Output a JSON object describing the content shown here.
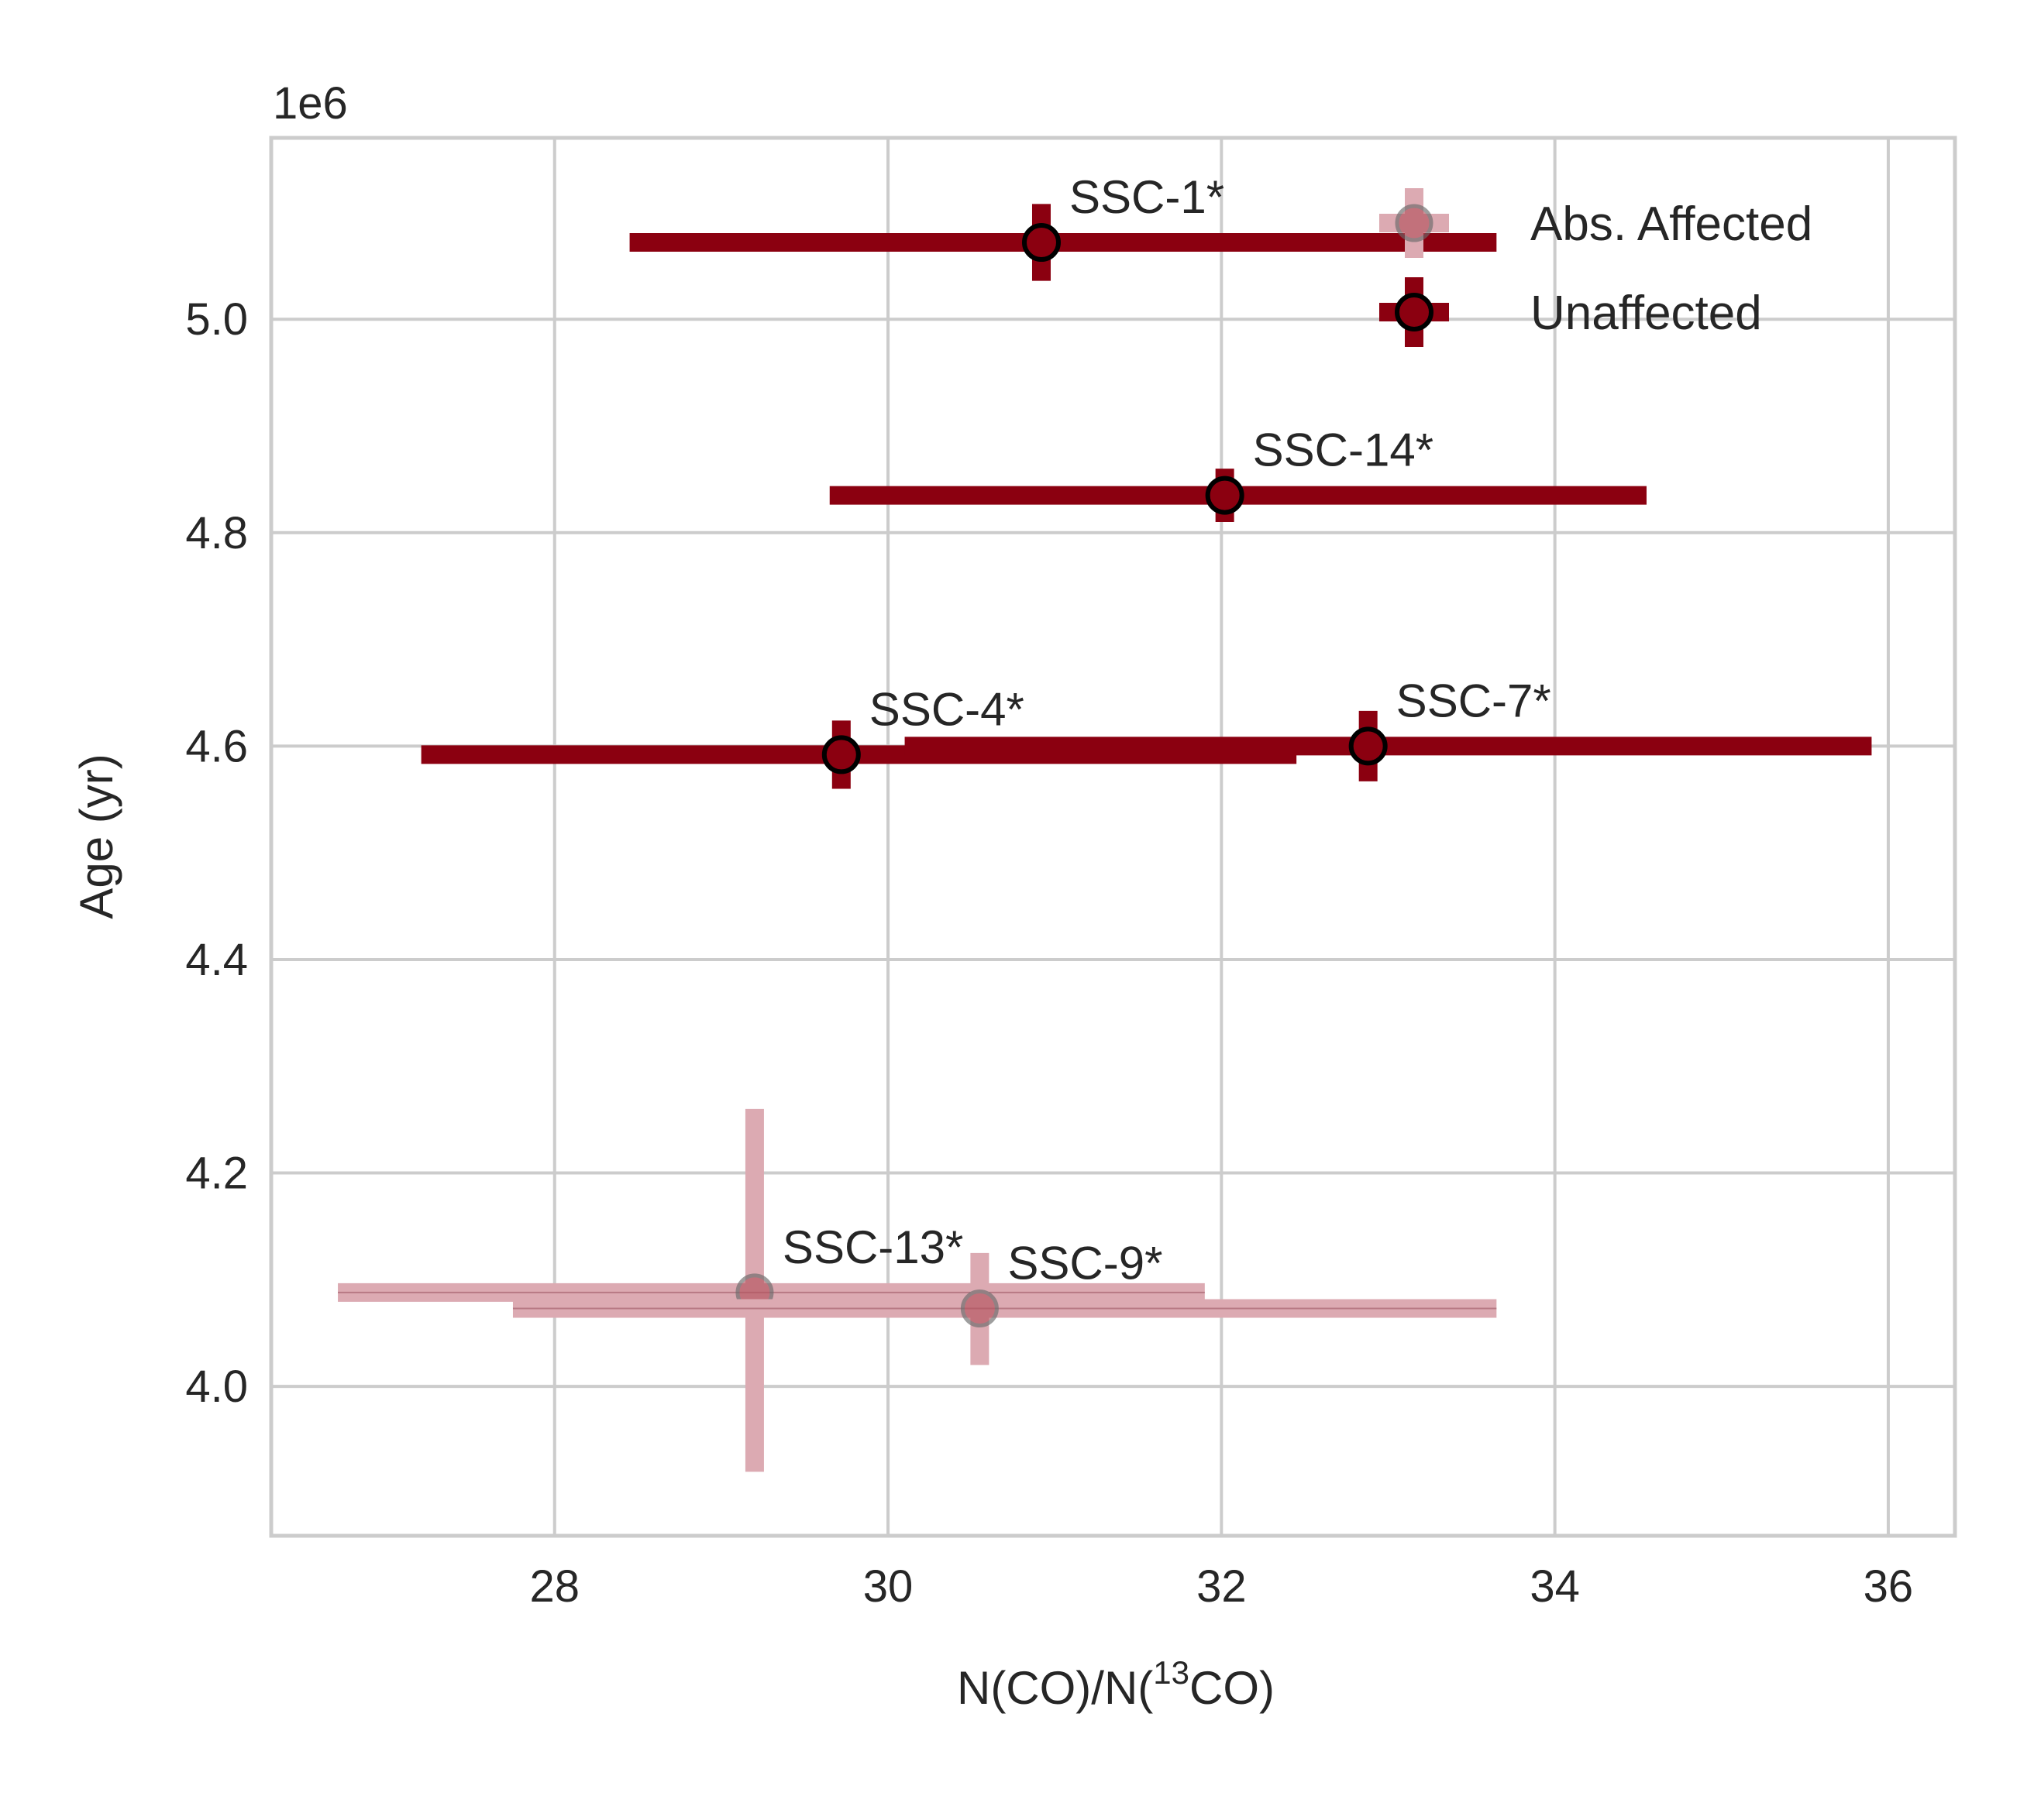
{
  "colors": {
    "unaffected": "#8b0010",
    "affected": "#dcaab2",
    "marker_edge": "#000000",
    "grid": "#cccccc",
    "text": "#262626"
  },
  "chart_data": {
    "type": "scatter",
    "title": "",
    "xlabel_main": "N(CO)/N(",
    "xlabel_sup": "13",
    "xlabel_tail": "CO)",
    "ylabel": "Age (yr)",
    "y_offset_label": "1e6",
    "xlim": [
      26.3,
      36.4
    ],
    "ylim": [
      3.86,
      5.17
    ],
    "xticks": [
      28,
      30,
      32,
      34,
      36
    ],
    "xtick_labels": [
      "28",
      "30",
      "32",
      "34",
      "36"
    ],
    "yticks": [
      4.0,
      4.2,
      4.4,
      4.6,
      4.8,
      5.0
    ],
    "ytick_labels": [
      "4.0",
      "4.2",
      "4.4",
      "4.6",
      "4.8",
      "5.0"
    ],
    "grid": true,
    "legend_position": "top-right",
    "legend": [
      {
        "name": "Abs. Affected",
        "series": "affected"
      },
      {
        "name": "Unaffected",
        "series": "unaffected"
      }
    ],
    "series": [
      {
        "name": "Abs. Affected",
        "key": "affected",
        "points": [
          {
            "label": "SSC-13*",
            "x": 29.2,
            "y": 4.088,
            "xerr_lo": 26.7,
            "xerr_hi": 31.9,
            "yerr_lo": 3.92,
            "yerr_hi": 4.26
          },
          {
            "label": "SSC-9*",
            "x": 30.55,
            "y": 4.073,
            "xerr_lo": 27.75,
            "xerr_hi": 33.65,
            "yerr_lo": 4.02,
            "yerr_hi": 4.125
          }
        ]
      },
      {
        "name": "Unaffected",
        "key": "unaffected",
        "points": [
          {
            "label": "SSC-1*",
            "x": 30.92,
            "y": 5.072,
            "xerr_lo": 28.45,
            "xerr_hi": 33.65,
            "yerr_lo": 5.036,
            "yerr_hi": 5.108
          },
          {
            "label": "SSC-14*",
            "x": 32.02,
            "y": 4.835,
            "xerr_lo": 29.65,
            "xerr_hi": 34.55,
            "yerr_lo": 4.81,
            "yerr_hi": 4.86
          },
          {
            "label": "SSC-4*",
            "x": 29.72,
            "y": 4.592,
            "xerr_lo": 27.2,
            "xerr_hi": 32.45,
            "yerr_lo": 4.56,
            "yerr_hi": 4.624
          },
          {
            "label": "SSC-7*",
            "x": 32.88,
            "y": 4.6,
            "xerr_lo": 30.1,
            "xerr_hi": 35.9,
            "yerr_lo": 4.567,
            "yerr_hi": 4.633
          }
        ]
      }
    ]
  }
}
